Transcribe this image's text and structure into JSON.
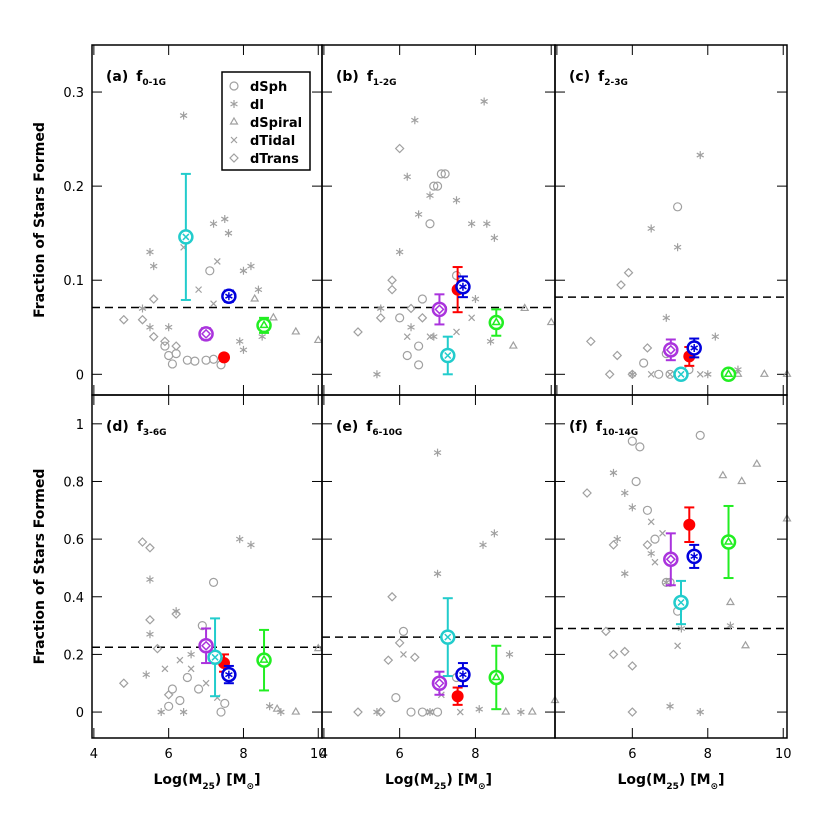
{
  "chart_data": [
    {
      "type": "scatter",
      "label": "(a)",
      "title": "f",
      "title_sub": "0-1G",
      "ylabel": "Fraction of Stars Formed",
      "legend": "top-right",
      "xlim": [
        3.95,
        10.1
      ],
      "ylim": [
        -0.022,
        0.35
      ],
      "xticks": [
        4,
        6,
        8,
        10
      ],
      "yticks": [
        0,
        0.1,
        0.2,
        0.3
      ],
      "hline": 0.071,
      "series": [
        {
          "name": "dSph",
          "color": "#ff0000",
          "marker": "circle",
          "x": [
            6.0,
            6.2,
            6.5,
            6.7,
            7.0,
            7.2,
            7.4,
            5.9,
            6.1,
            7.1
          ],
          "y": [
            0.02,
            0.022,
            0.015,
            0.014,
            0.015,
            0.016,
            0.01,
            0.03,
            0.011,
            0.11
          ],
          "mean_x": 7.48,
          "mean_y": 0.018,
          "error": 0.002
        },
        {
          "name": "dI",
          "color": "#0000dd",
          "marker": "star",
          "x": [
            5.5,
            5.6,
            5.3,
            5.5,
            6.0,
            7.2,
            7.5,
            7.6,
            8.0,
            8.2,
            8.4,
            8.5,
            7.9,
            8.0,
            6.4
          ],
          "y": [
            0.13,
            0.115,
            0.07,
            0.05,
            0.05,
            0.16,
            0.165,
            0.15,
            0.11,
            0.115,
            0.09,
            0.04,
            0.035,
            0.026,
            0.275
          ],
          "mean_x": 7.61,
          "mean_y": 0.083,
          "error": 0.006
        },
        {
          "name": "dSpiral",
          "color": "#22ee22",
          "marker": "triangle",
          "x": [
            8.3,
            8.8,
            9.4,
            10.0
          ],
          "y": [
            0.08,
            0.06,
            0.045,
            0.036
          ],
          "mean_x": 8.55,
          "mean_y": 0.052,
          "error": 0.008
        },
        {
          "name": "dTidal",
          "color": "#22cccc",
          "marker": "cross",
          "x": [
            6.4,
            7.3,
            7.2,
            6.8
          ],
          "y": [
            0.135,
            0.12,
            0.075,
            0.09
          ],
          "mean_x": 6.46,
          "mean_y": 0.146,
          "error": 0.067
        },
        {
          "name": "dTrans",
          "color": "#aa33dd",
          "marker": "diamond",
          "x": [
            4.8,
            5.3,
            5.6,
            5.6,
            5.9,
            6.2
          ],
          "y": [
            0.058,
            0.058,
            0.08,
            0.04,
            0.035,
            0.03
          ],
          "mean_x": 7.0,
          "mean_y": 0.043,
          "error": 0.006
        }
      ]
    },
    {
      "type": "scatter",
      "label": "(b)",
      "title": "f",
      "title_sub": "1-2G",
      "xlim": [
        3.95,
        10.1
      ],
      "ylim": [
        -0.022,
        0.35
      ],
      "xticks": [
        4,
        6,
        8,
        10
      ],
      "yticks": [
        0,
        0.1,
        0.2,
        0.3
      ],
      "hline": 0.071,
      "series": [
        {
          "color": "#ff0000",
          "marker": "circle",
          "x": [
            6.0,
            6.5,
            6.5,
            6.8,
            7.0,
            7.1,
            7.2,
            6.9,
            6.6,
            7.5,
            6.2
          ],
          "y": [
            0.06,
            0.03,
            0.01,
            0.16,
            0.2,
            0.213,
            0.213,
            0.2,
            0.08,
            0.105,
            0.02
          ],
          "mean_x": 7.53,
          "mean_y": 0.09,
          "error": 0.024
        },
        {
          "color": "#0000dd",
          "marker": "star",
          "x": [
            5.5,
            6.0,
            6.2,
            6.4,
            6.5,
            6.8,
            7.5,
            8.23,
            6.3,
            6.9,
            7.9,
            8.3,
            8.0,
            8.4,
            5.4,
            8.5
          ],
          "y": [
            0.07,
            0.13,
            0.21,
            0.27,
            0.17,
            0.19,
            0.185,
            0.29,
            0.05,
            0.04,
            0.16,
            0.16,
            0.08,
            0.035,
            0.0,
            0.145
          ],
          "mean_x": 7.67,
          "mean_y": 0.093,
          "error": 0.011
        },
        {
          "color": "#22ee22",
          "marker": "triangle",
          "x": [
            8.6,
            9.3,
            10.0,
            9.0
          ],
          "y": [
            0.055,
            0.07,
            0.055,
            0.03
          ],
          "mean_x": 8.55,
          "mean_y": 0.055,
          "error": 0.014
        },
        {
          "color": "#22cccc",
          "marker": "cross",
          "x": [
            6.8,
            7.5,
            7.9,
            6.2
          ],
          "y": [
            0.04,
            0.045,
            0.06,
            0.04
          ],
          "mean_x": 7.27,
          "mean_y": 0.02,
          "error": 0.02
        },
        {
          "color": "#aa33dd",
          "marker": "diamond",
          "x": [
            4.9,
            5.5,
            5.8,
            6.0,
            6.3,
            6.6,
            5.8
          ],
          "y": [
            0.045,
            0.06,
            0.1,
            0.24,
            0.07,
            0.06,
            0.09
          ],
          "mean_x": 7.05,
          "mean_y": 0.069,
          "error": 0.016
        }
      ]
    },
    {
      "type": "scatter",
      "label": "(c)",
      "title": "f",
      "title_sub": "2-3G",
      "xlim": [
        3.95,
        10.1
      ],
      "ylim": [
        -0.022,
        0.35
      ],
      "xticks": [
        4,
        6,
        8,
        10
      ],
      "yticks": [
        0,
        0.1,
        0.2,
        0.3
      ],
      "hline": 0.082,
      "series": [
        {
          "color": "#ff0000",
          "marker": "circle",
          "x": [
            7.2,
            6.9,
            6.3,
            7.5,
            7.0,
            6.7
          ],
          "y": [
            0.178,
            0.022,
            0.012,
            0.005,
            0.0,
            0.0
          ],
          "mean_x": 7.51,
          "mean_y": 0.019,
          "error": 0.01
        },
        {
          "color": "#0000dd",
          "marker": "star",
          "x": [
            6.5,
            7.2,
            7.8,
            6.9,
            8.2,
            8.8,
            6.0,
            8.0
          ],
          "y": [
            0.155,
            0.135,
            0.233,
            0.06,
            0.04,
            0.005,
            0.0,
            0.0
          ],
          "mean_x": 7.64,
          "mean_y": 0.028,
          "error": 0.01
        },
        {
          "color": "#22ee22",
          "marker": "triangle",
          "x": [
            8.8,
            9.5,
            10.1
          ],
          "y": [
            0.0,
            0.0,
            0.0
          ],
          "mean_x": 8.55,
          "mean_y": 0.0,
          "error": 0.003
        },
        {
          "color": "#22cccc",
          "marker": "cross",
          "x": [
            6.5,
            7.0,
            7.3,
            7.8
          ],
          "y": [
            0.0,
            0.0,
            0.0,
            0.0
          ],
          "mean_x": 7.29,
          "mean_y": 0.0,
          "error": 0.002
        },
        {
          "color": "#aa33dd",
          "marker": "diamond",
          "x": [
            4.9,
            5.6,
            5.7,
            5.9,
            6.0,
            6.4,
            5.4
          ],
          "y": [
            0.035,
            0.02,
            0.095,
            0.108,
            0.0,
            0.028,
            0.0
          ],
          "mean_x": 7.02,
          "mean_y": 0.026,
          "error": 0.011
        }
      ]
    },
    {
      "type": "scatter",
      "label": "(d)",
      "title": "f",
      "title_sub": "3-6G",
      "ylabel": "Fraction of Stars Formed",
      "xlabel": [
        "Log(M",
        "25",
        ") [M",
        "⊙",
        "]"
      ],
      "xlim": [
        3.95,
        10.1
      ],
      "ylim": [
        -0.09,
        1.1
      ],
      "xticks": [
        4,
        6,
        8,
        10
      ],
      "yticks": [
        0,
        0.2,
        0.4,
        0.6,
        0.8,
        1
      ],
      "hline": 0.225,
      "series": [
        {
          "color": "#ff0000",
          "marker": "circle",
          "x": [
            7.2,
            6.9,
            6.1,
            6.3,
            6.5,
            6.8,
            7.5,
            6.0,
            7.4
          ],
          "y": [
            0.45,
            0.3,
            0.08,
            0.04,
            0.12,
            0.08,
            0.03,
            0.02,
            0.0
          ],
          "mean_x": 7.48,
          "mean_y": 0.17,
          "error": 0.03
        },
        {
          "color": "#0000dd",
          "marker": "star",
          "x": [
            5.5,
            5.5,
            5.4,
            5.8,
            6.2,
            6.6,
            7.9,
            8.2,
            8.7,
            9.0,
            6.4
          ],
          "y": [
            0.46,
            0.27,
            0.13,
            0.0,
            0.35,
            0.2,
            0.6,
            0.58,
            0.02,
            0.0,
            0.0
          ],
          "mean_x": 7.61,
          "mean_y": 0.13,
          "error": 0.03
        },
        {
          "color": "#22ee22",
          "marker": "triangle",
          "x": [
            8.9,
            9.4,
            10.0,
            7.2
          ],
          "y": [
            0.01,
            0.0,
            0.22,
            0.2
          ],
          "mean_x": 8.55,
          "mean_y": 0.18,
          "error": 0.105
        },
        {
          "color": "#22cccc",
          "marker": "cross",
          "x": [
            6.3,
            6.6,
            7.0,
            7.3,
            5.9
          ],
          "y": [
            0.18,
            0.15,
            0.1,
            0.05,
            0.15
          ],
          "mean_x": 7.24,
          "mean_y": 0.19,
          "error": 0.135
        },
        {
          "color": "#aa33dd",
          "marker": "diamond",
          "x": [
            4.8,
            5.3,
            5.5,
            5.5,
            5.7,
            6.2,
            6.0
          ],
          "y": [
            0.1,
            0.59,
            0.57,
            0.32,
            0.22,
            0.34,
            0.06
          ],
          "mean_x": 7.0,
          "mean_y": 0.23,
          "error": 0.06
        }
      ]
    },
    {
      "type": "scatter",
      "label": "(e)",
      "title": "f",
      "title_sub": "6-10G",
      "xlabel": [
        "Log(M",
        "25",
        ") [M",
        "⊙",
        "]"
      ],
      "xlim": [
        3.95,
        10.1
      ],
      "ylim": [
        -0.09,
        1.1
      ],
      "xticks": [
        4,
        6,
        8
      ],
      "yticks": [
        0,
        0.2,
        0.4,
        0.6,
        0.8,
        1
      ],
      "hline": 0.26,
      "series": [
        {
          "color": "#ff0000",
          "marker": "circle",
          "x": [
            6.1,
            6.3,
            6.6,
            7.0,
            7.5,
            5.9
          ],
          "y": [
            0.28,
            0.0,
            0.0,
            0.0,
            0.12,
            0.05
          ],
          "mean_x": 7.53,
          "mean_y": 0.055,
          "error": 0.03
        },
        {
          "color": "#0000dd",
          "marker": "star",
          "x": [
            7.0,
            7.0,
            8.2,
            8.5,
            8.9,
            8.1,
            5.4,
            6.8,
            9.2
          ],
          "y": [
            0.9,
            0.48,
            0.58,
            0.62,
            0.2,
            0.01,
            0.0,
            0.0,
            0.0
          ],
          "mean_x": 7.67,
          "mean_y": 0.13,
          "error": 0.04
        },
        {
          "color": "#22ee22",
          "marker": "triangle",
          "x": [
            8.8,
            9.5,
            10.1
          ],
          "y": [
            0.0,
            0.0,
            0.04
          ],
          "mean_x": 8.55,
          "mean_y": 0.12,
          "error": 0.11
        },
        {
          "color": "#22cccc",
          "marker": "cross",
          "x": [
            6.1,
            6.8,
            7.6,
            7.1
          ],
          "y": [
            0.2,
            0.0,
            0.0,
            0.06
          ],
          "mean_x": 7.27,
          "mean_y": 0.26,
          "error": 0.135
        },
        {
          "color": "#aa33dd",
          "marker": "diamond",
          "x": [
            4.9,
            5.5,
            5.8,
            6.0,
            6.4,
            5.7
          ],
          "y": [
            0.0,
            0.0,
            0.4,
            0.24,
            0.19,
            0.18
          ],
          "mean_x": 7.05,
          "mean_y": 0.1,
          "error": 0.04
        }
      ]
    },
    {
      "type": "scatter",
      "label": "(f)",
      "title": "f",
      "title_sub": "10-14G",
      "xlabel": [
        "Log(M",
        "25",
        ") [M",
        "⊙",
        "]"
      ],
      "xlim": [
        3.95,
        10.1
      ],
      "ylim": [
        -0.09,
        1.1
      ],
      "xticks": [
        6,
        8,
        10
      ],
      "yticks": [
        0,
        0.2,
        0.4,
        0.6,
        0.8,
        1
      ],
      "hline": 0.29,
      "series": [
        {
          "color": "#ff0000",
          "marker": "circle",
          "x": [
            6.0,
            6.2,
            6.1,
            6.4,
            6.6,
            7.0,
            7.2,
            6.9,
            7.8
          ],
          "y": [
            0.94,
            0.92,
            0.8,
            0.7,
            0.6,
            0.45,
            0.35,
            0.45,
            0.96
          ],
          "mean_x": 7.51,
          "mean_y": 0.65,
          "error": 0.06
        },
        {
          "color": "#0000dd",
          "marker": "star",
          "x": [
            5.5,
            5.8,
            6.0,
            5.6,
            5.8,
            6.5,
            6.9,
            7.3,
            7.8,
            8.6,
            7.0
          ],
          "y": [
            0.83,
            0.76,
            0.71,
            0.6,
            0.48,
            0.55,
            0.45,
            0.29,
            0.0,
            0.3,
            0.02
          ],
          "mean_x": 7.64,
          "mean_y": 0.54,
          "error": 0.04
        },
        {
          "color": "#22ee22",
          "marker": "triangle",
          "x": [
            8.4,
            8.9,
            9.3,
            10.1,
            9.0,
            8.6
          ],
          "y": [
            0.82,
            0.8,
            0.86,
            0.67,
            0.23,
            0.38
          ],
          "mean_x": 8.55,
          "mean_y": 0.59,
          "error": 0.125
        },
        {
          "color": "#22cccc",
          "marker": "cross",
          "x": [
            6.8,
            6.5,
            7.2,
            6.6
          ],
          "y": [
            0.62,
            0.66,
            0.23,
            0.52
          ],
          "mean_x": 7.29,
          "mean_y": 0.38,
          "error": 0.075
        },
        {
          "color": "#aa33dd",
          "marker": "diamond",
          "x": [
            4.8,
            5.3,
            5.5,
            5.8,
            6.0,
            6.0,
            6.4,
            5.5
          ],
          "y": [
            0.76,
            0.28,
            0.58,
            0.21,
            0.16,
            0.0,
            0.58,
            0.2
          ],
          "mean_x": 7.02,
          "mean_y": 0.53,
          "error": 0.09
        }
      ]
    }
  ]
}
